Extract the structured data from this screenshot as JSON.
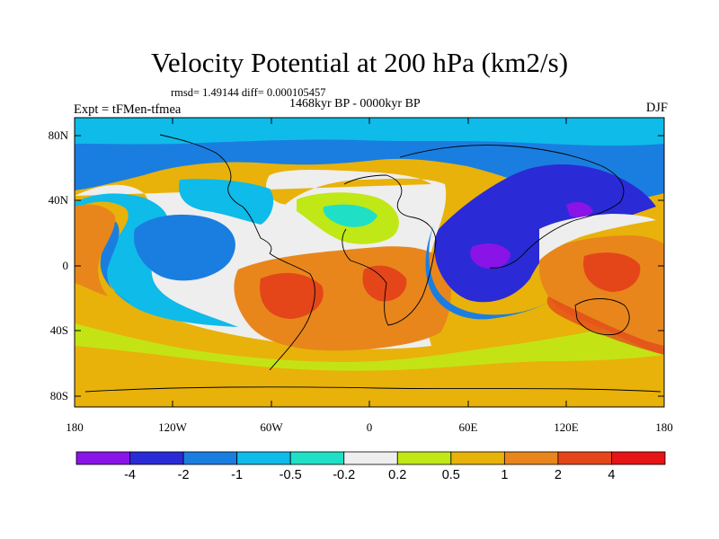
{
  "title": "Velocity Potential at 200 hPa (km2/s)",
  "stats": "rmsd= 1.49144 diff= 0.000105457",
  "period": "1468kyr BP - 0000kyr BP",
  "experiment": "Expt = tFMen-tfmea",
  "season": "DJF",
  "lat_labels": [
    "80N",
    "40N",
    "0",
    "40S",
    "80S"
  ],
  "lon_labels": [
    "180",
    "120W",
    "60W",
    "0",
    "60E",
    "120E",
    "180"
  ],
  "colorbar": {
    "labels": [
      "-4",
      "-2",
      "-1",
      "-0.5",
      "-0.2",
      "0.2",
      "0.5",
      "1",
      "2",
      "4"
    ],
    "colors": [
      "#8a13e8",
      "#2a2bd6",
      "#1a7ee0",
      "#0fbbe8",
      "#1fe0c6",
      "#eeeeee",
      "#c0e816",
      "#e8b20a",
      "#e8861c",
      "#e4461a",
      "#e61414"
    ]
  }
}
